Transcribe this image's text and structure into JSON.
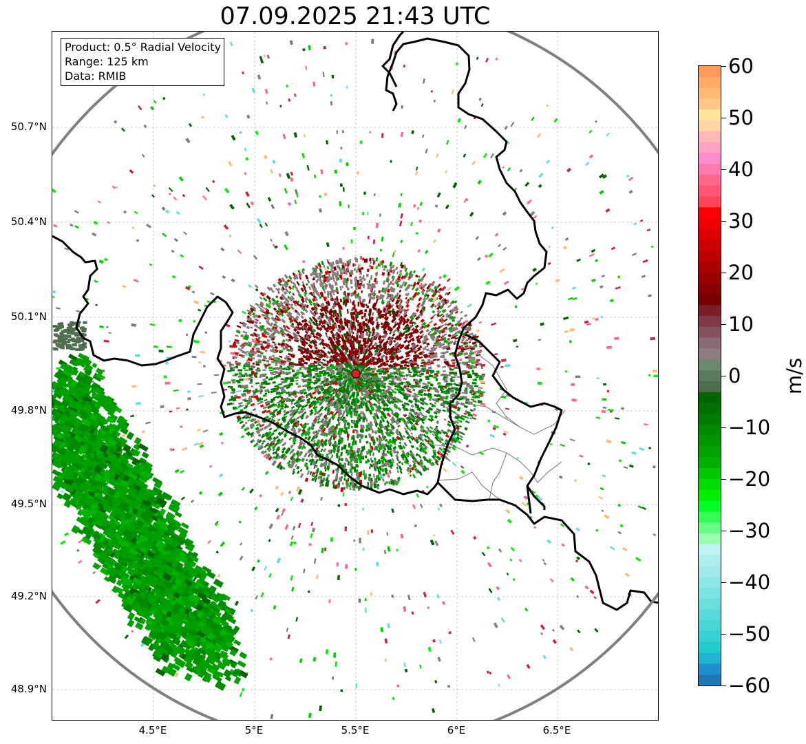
{
  "title": "07.09.2025 21:43 UTC",
  "info_box": {
    "product": "Product: 0.5° Radial Velocity",
    "range": "Range: 125 km",
    "data": "Data: RMIB"
  },
  "axes": {
    "lat_labels": [
      "50.7°N",
      "50.4°N",
      "50.1°N",
      "49.8°N",
      "49.5°N",
      "49.2°N",
      "48.9°N"
    ],
    "lon_labels": [
      "4.5°E",
      "5°E",
      "5.5°E",
      "6°E",
      "6.5°E"
    ]
  },
  "colorbar": {
    "unit": "m/s",
    "tick_labels": [
      "60",
      "50",
      "40",
      "30",
      "20",
      "10",
      "0",
      "−10",
      "−20",
      "−30",
      "−40",
      "−50",
      "−60"
    ],
    "range": [
      -60,
      60
    ],
    "colors_top_to_bottom": [
      "#ff9a5a",
      "#ffab65",
      "#ffbb75",
      "#ffc985",
      "#ffe49a",
      "#ffd5a8",
      "#ffb8b8",
      "#ffa3c2",
      "#ff8ccc",
      "#ff7ab0",
      "#ff6688",
      "#ff5577",
      "#ff4455",
      "#ff0000",
      "#ee0000",
      "#dd0000",
      "#cc0000",
      "#bb0000",
      "#aa0000",
      "#990000",
      "#880000",
      "#770000",
      "#7a1f2a",
      "#7e3b47",
      "#835460",
      "#8a6a76",
      "#8d7d80",
      "#6e8a6e",
      "#5e7a5e",
      "#4f6e4f",
      "#006400",
      "#007000",
      "#007d00",
      "#008a00",
      "#009600",
      "#00a300",
      "#00b000",
      "#00c800",
      "#00dd00",
      "#00ee00",
      "#00ff22",
      "#33ff55",
      "#66ff88",
      "#99ffb0",
      "#c0f4f4",
      "#b0eeee",
      "#a0eaea",
      "#8ee6e6",
      "#7ce2e2",
      "#6adede",
      "#58dada",
      "#46d6d6",
      "#34d2d2",
      "#22cccc",
      "#1fb4d4",
      "#1e90cc",
      "#1f78b4"
    ]
  },
  "map": {
    "range_ring_color": "#808080",
    "border_color": "#000000",
    "radar_marker_color": "#e0201a"
  }
}
